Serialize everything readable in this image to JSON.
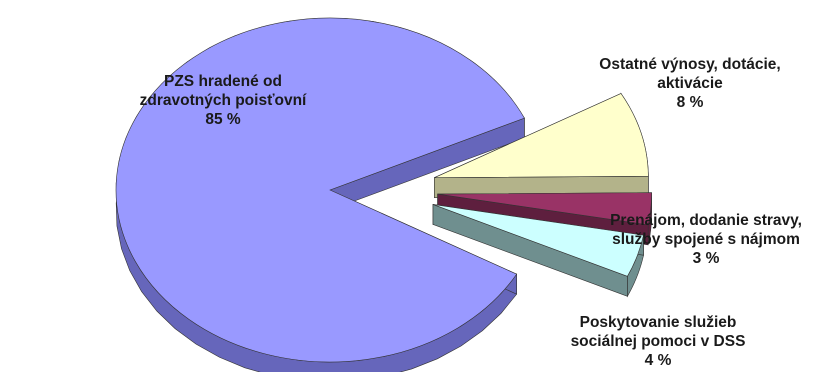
{
  "chart_data": {
    "type": "pie",
    "style": "3d-exploded",
    "slices": [
      {
        "label_lines": [
          "PZS hradené od",
          "zdravotných poisťovní"
        ],
        "value": 85,
        "value_label": "85 %",
        "color": "#9999ff",
        "side_color": "#6666bb"
      },
      {
        "label_lines": [
          "Ostatné výnosy, dotácie,",
          "aktivácie"
        ],
        "value": 8,
        "value_label": "8 %",
        "color": "#ffffcc",
        "side_color": "#b3b38a"
      },
      {
        "label_lines": [
          "Prenájom, dodanie stravy,",
          "služby spojené s nájmom"
        ],
        "value": 3,
        "value_label": "3 %",
        "color": "#993366",
        "side_color": "#5e1f3e"
      },
      {
        "label_lines": [
          "Poskytovanie služieb",
          "sociálnej pomoci v DSS"
        ],
        "value": 4,
        "value_label": "4 %",
        "color": "#ccffff",
        "side_color": "#6f8f8f"
      }
    ]
  }
}
